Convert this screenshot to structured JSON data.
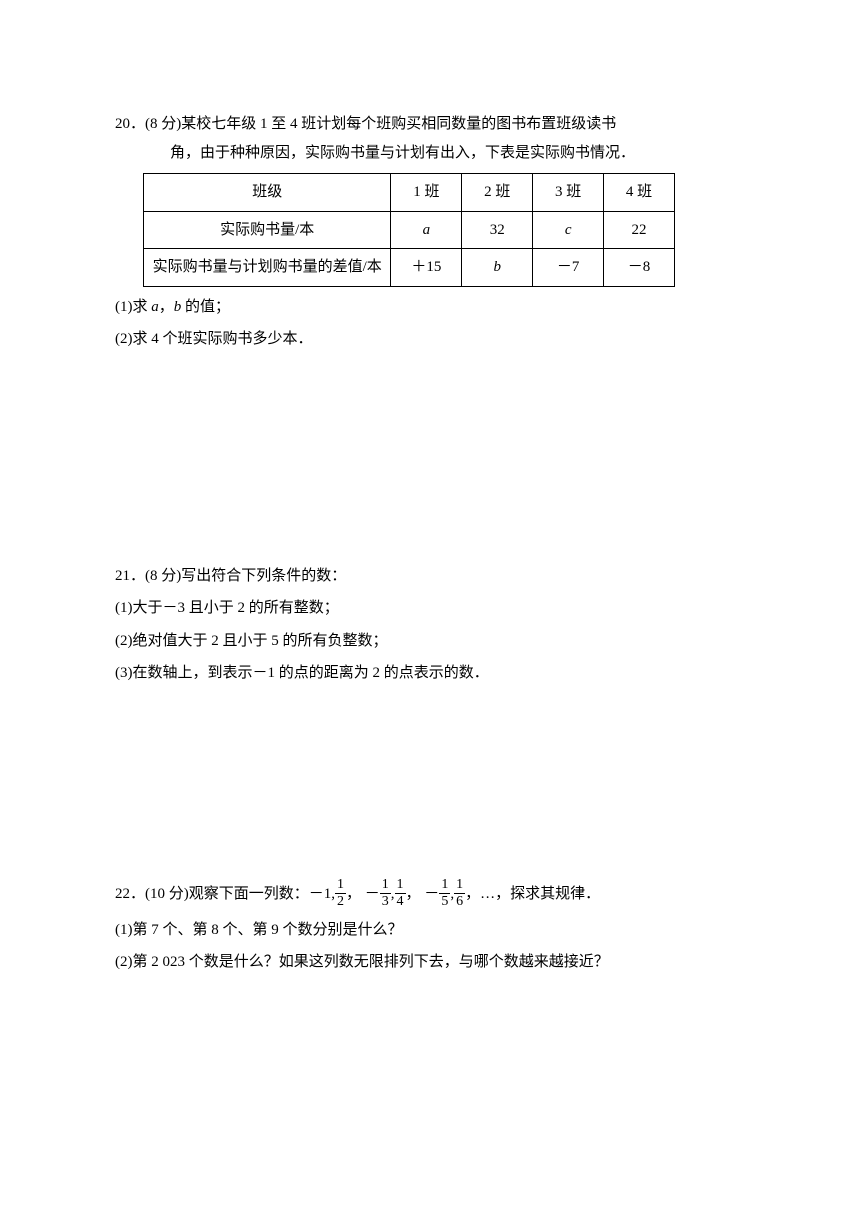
{
  "q20": {
    "header": "20．(8 分)某校七年级 1 至 4 班计划每个班购买相同数量的图书布置班级读书",
    "header2": "角，由于种种原因，实际购书量与计划有出入，下表是实际购书情况．",
    "table": {
      "row1": [
        "班级",
        "1 班",
        "2 班",
        "3 班",
        "4 班"
      ],
      "row2": [
        "实际购书量/本",
        "a",
        "32",
        "c",
        "22"
      ],
      "row3": [
        "实际购书量与计划购书量的差值/本",
        "＋15",
        "b",
        "－7",
        "－8"
      ]
    },
    "sub1_pre": "(1)求 ",
    "sub1_a": "a",
    "sub1_mid": "，",
    "sub1_b": "b",
    "sub1_post": " 的值；",
    "sub2": "(2)求 4 个班实际购书多少本．"
  },
  "q21": {
    "header": "21．(8 分)写出符合下列条件的数：",
    "sub1": "(1)大于－3 且小于 2 的所有整数；",
    "sub2": "(2)绝对值大于 2 且小于 5 的所有负整数；",
    "sub3": "(3)在数轴上，到表示－1 的点的距离为 2 的点表示的数．"
  },
  "q22": {
    "header_pre": "22．(10 分)观察下面一列数：－1,",
    "header_post": "，…，探求其规律．",
    "f1n": "1",
    "f1d": "2",
    "f2n": "1",
    "f2d": "3",
    "f3n": "1",
    "f3d": "4",
    "f4n": "1",
    "f4d": "5",
    "f5n": "1",
    "f5d": "6",
    "neg": "－",
    "comma": ",",
    "sep": "，",
    "sub1": "(1)第 7 个、第 8 个、第 9 个数分别是什么？",
    "sub2": "(2)第 2 023 个数是什么？如果这列数无限排列下去，与哪个数越来越接近？"
  }
}
